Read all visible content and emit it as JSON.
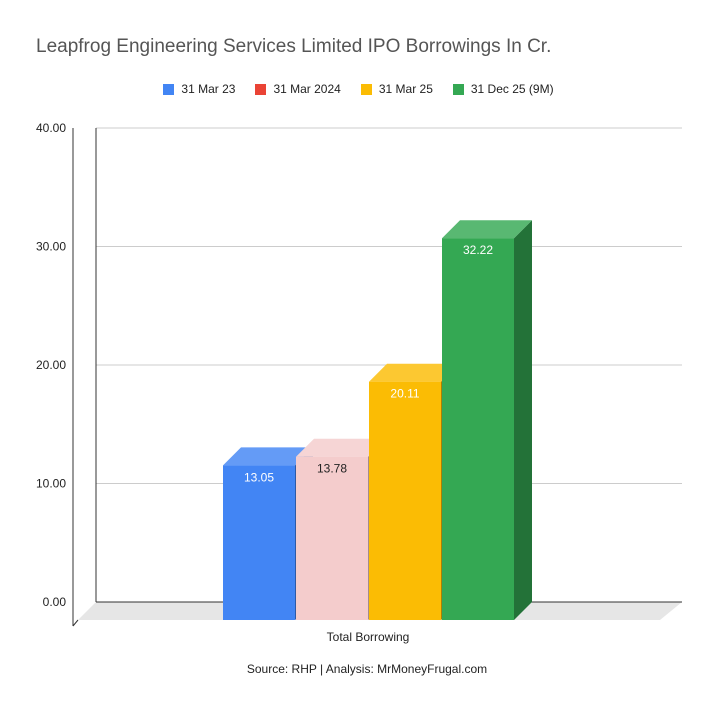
{
  "chart_data": {
    "type": "bar",
    "title": "Leapfrog Engineering Services Limited IPO Borrowings In Cr.",
    "categories": [
      "Total Borrowing"
    ],
    "series": [
      {
        "name": "31 Mar 23",
        "values": [
          13.05
        ],
        "color": "#4285f4",
        "label": "13.05"
      },
      {
        "name": "31 Mar 2024",
        "values": [
          13.78
        ],
        "color": "#f4cccc",
        "label": "13.78",
        "legend_color": "#ea4335"
      },
      {
        "name": "31 Mar 25",
        "values": [
          20.11
        ],
        "color": "#fbbc04",
        "label": "20.11"
      },
      {
        "name": "31 Dec 25 (9M)",
        "values": [
          32.22
        ],
        "color": "#34a853",
        "label": "32.22"
      }
    ],
    "ylim": [
      0,
      40
    ],
    "yticks": [
      "0.00",
      "10.00",
      "20.00",
      "30.00",
      "40.00"
    ],
    "grid": true,
    "legend_position": "top",
    "xlabel": "",
    "ylabel": ""
  },
  "source_text": "Source: RHP | Analysis: MrMoneyFrugal.com"
}
